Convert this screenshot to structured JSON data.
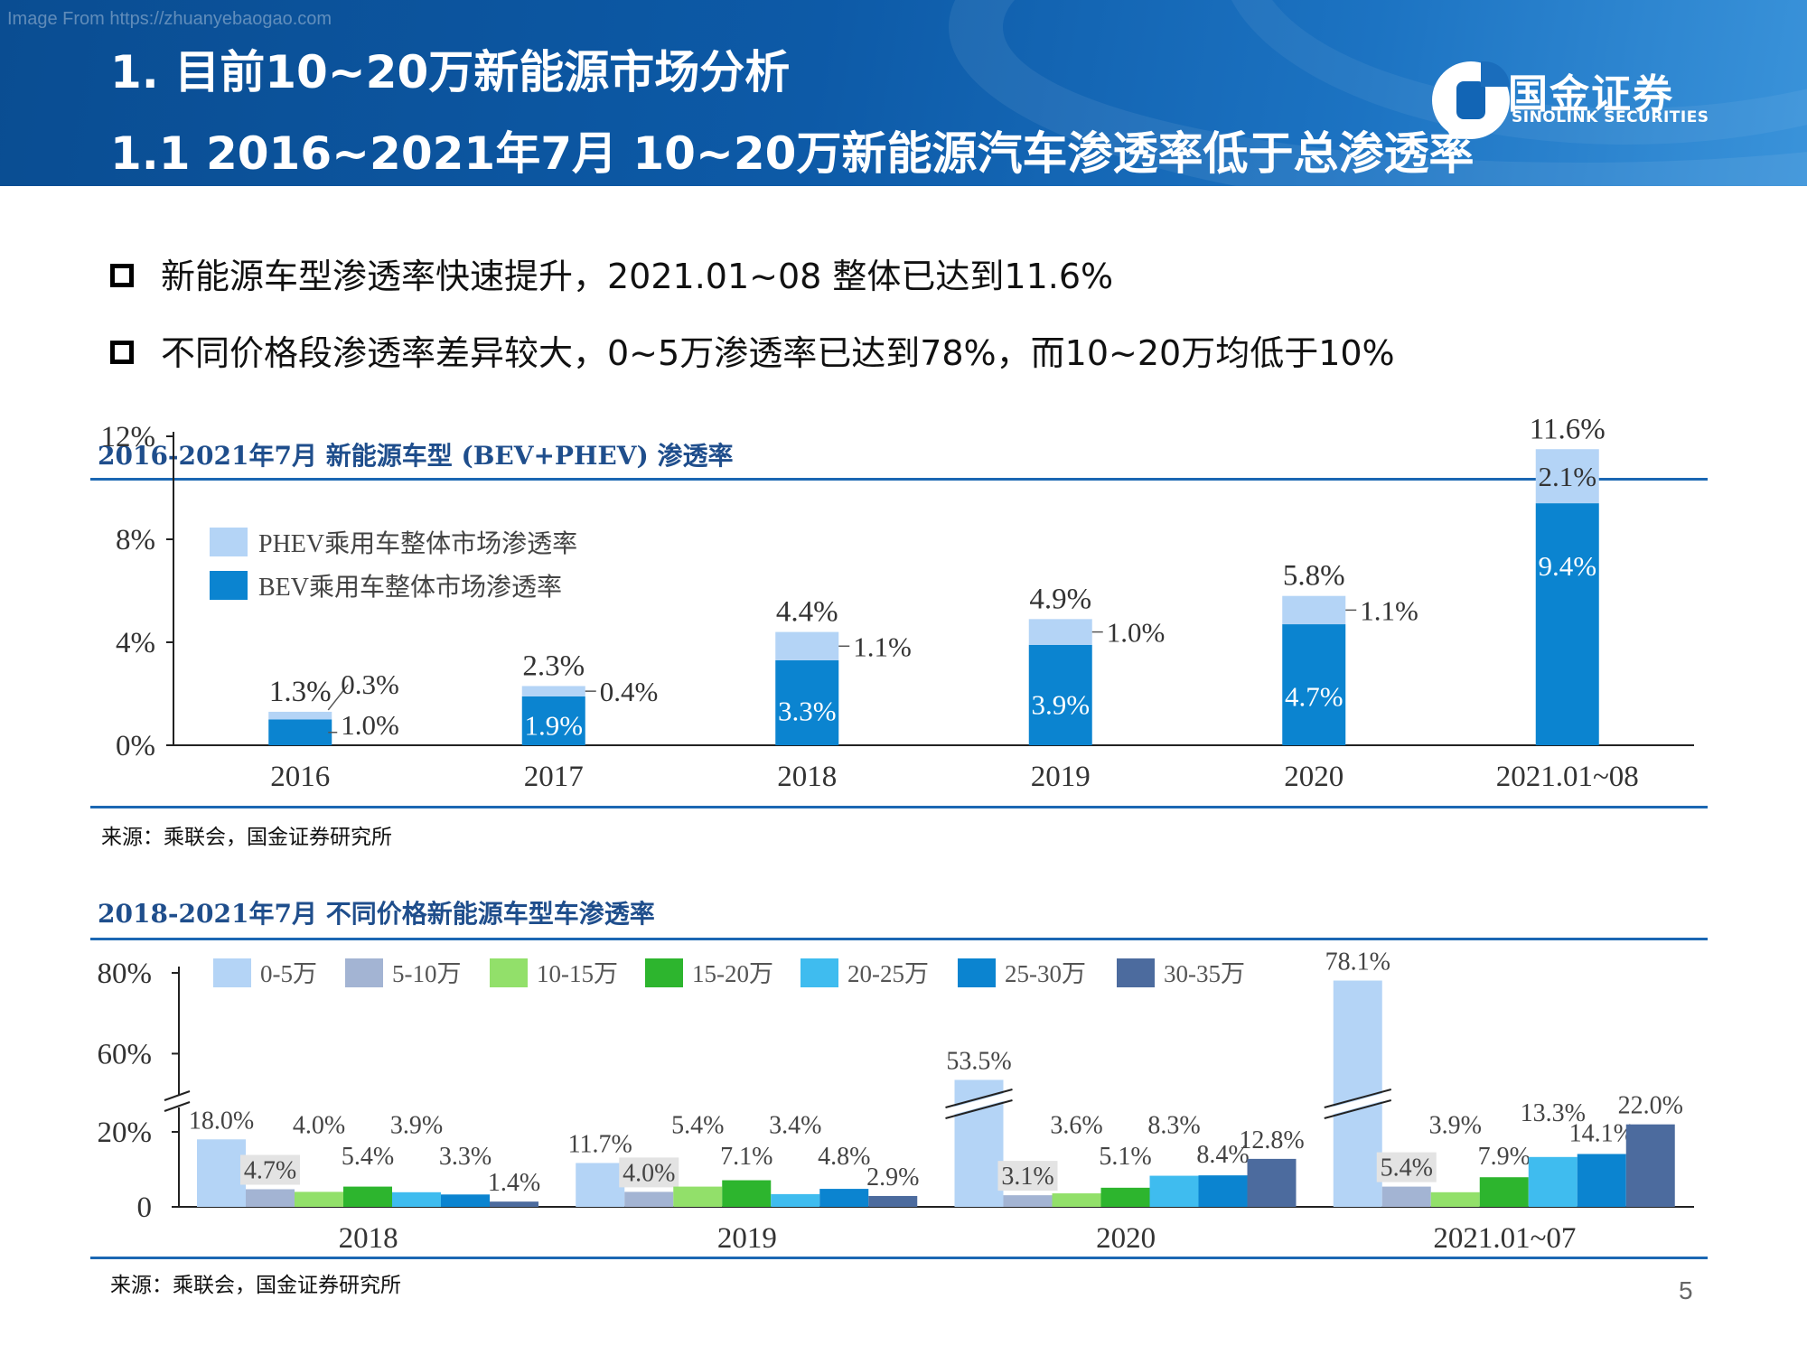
{
  "header": {
    "watermark": "Image From https://zhuanyebaogao.com",
    "title_line1": "1. 目前10~20万新能源市场分析",
    "title_line2": "1.1 2016~2021年7月 10~20万新能源汽车渗透率低于总渗透率",
    "logo_cn": "国金证券",
    "logo_en": "SINOLINK SECURITIES"
  },
  "bullets": [
    "新能源车型渗透率快速提升，2021.01~08 整体已达到11.6%",
    "不同价格段渗透率差异较大，0~5万渗透率已达到78%，而10~20万均低于10%"
  ],
  "colors": {
    "header_bg": "#0d5aa7",
    "phev": "#b4d4f6",
    "bev": "#0b84d0",
    "rule": "#1b67b3",
    "price_series": [
      "#b4d4f6",
      "#a3b4d3",
      "#92e06a",
      "#2db52e",
      "#3fbcef",
      "#0b84d0",
      "#4c6b9e"
    ]
  },
  "chart1": {
    "title": "2016-2021年7月 新能源车型 (BEV+PHEV) 渗透率",
    "source": "来源：乘联会，国金证券研究所",
    "legend": [
      "PHEV乘用车整体市场渗透率",
      "BEV乘用车整体市场渗透率"
    ],
    "y_ticks": [
      "0%",
      "4%",
      "8%",
      "12%"
    ]
  },
  "chart2": {
    "title": "2018-2021年7月 不同价格新能源车型车渗透率",
    "source": "来源：乘联会，国金证券研究所",
    "legend": [
      "0-5万",
      "5-10万",
      "10-15万",
      "15-20万",
      "20-25万",
      "25-30万",
      "30-35万"
    ],
    "y_ticks": [
      "0",
      "20%",
      "60%",
      "80%"
    ]
  },
  "page_number": "5",
  "chart_data": [
    {
      "type": "bar",
      "stacked": true,
      "title": "2016-2021年7月 新能源车型 (BEV+PHEV) 渗透率",
      "categories": [
        "2016",
        "2017",
        "2018",
        "2019",
        "2020",
        "2021.01~08"
      ],
      "series": [
        {
          "name": "BEV乘用车整体市场渗透率",
          "values": [
            1.0,
            1.9,
            3.3,
            3.9,
            4.7,
            9.4
          ]
        },
        {
          "name": "PHEV乘用车整体市场渗透率",
          "values": [
            0.3,
            0.4,
            1.1,
            1.0,
            1.1,
            2.1
          ]
        }
      ],
      "value_labels": {
        "bev": [
          "1.0%",
          "1.9%",
          "3.3%",
          "3.9%",
          "4.7%",
          "9.4%"
        ],
        "phev": [
          "0.3%",
          "0.4%",
          "1.1%",
          "1.0%",
          "1.1%",
          "2.1%"
        ],
        "totals": [
          "1.3%",
          "2.3%",
          "4.4%",
          "4.9%",
          "5.8%",
          "11.6%"
        ]
      },
      "ylim": [
        0,
        12
      ],
      "yticks": [
        "0%",
        "4%",
        "8%",
        "12%"
      ],
      "legend_position": "top-left",
      "grid": false
    },
    {
      "type": "bar",
      "title": "2018-2021年7月 不同价格新能源车型车渗透率",
      "categories": [
        "2018",
        "2019",
        "2020",
        "2021.01~07"
      ],
      "series": [
        {
          "name": "0-5万",
          "values": [
            18.0,
            11.7,
            53.5,
            78.1
          ]
        },
        {
          "name": "5-10万",
          "values": [
            4.7,
            4.0,
            3.1,
            5.4
          ]
        },
        {
          "name": "10-15万",
          "values": [
            4.0,
            5.4,
            3.6,
            3.9
          ]
        },
        {
          "name": "15-20万",
          "values": [
            5.4,
            7.1,
            5.1,
            7.9
          ]
        },
        {
          "name": "20-25万",
          "values": [
            3.9,
            3.4,
            8.3,
            13.3
          ]
        },
        {
          "name": "25-30万",
          "values": [
            3.3,
            4.8,
            8.4,
            14.1
          ]
        },
        {
          "name": "30-35万",
          "values": [
            1.4,
            2.9,
            12.8,
            22.0
          ]
        }
      ],
      "value_labels": [
        [
          "18.0%",
          "4.7%",
          "4.0%",
          "5.4%",
          "3.9%",
          "3.3%",
          "1.4%"
        ],
        [
          "11.7%",
          "4.0%",
          "5.4%",
          "7.1%",
          "3.4%",
          "4.8%",
          "2.9%"
        ],
        [
          "53.5%",
          "3.1%",
          "3.6%",
          "5.1%",
          "8.3%",
          "8.4%",
          "12.8%"
        ],
        [
          "78.1%",
          "5.4%",
          "3.9%",
          "7.9%",
          "13.3%",
          "14.1%",
          "22.0%"
        ]
      ],
      "axis_break": true,
      "yticks": [
        "0",
        "20%",
        "60%",
        "80%"
      ],
      "legend_position": "top",
      "grid": false
    }
  ]
}
